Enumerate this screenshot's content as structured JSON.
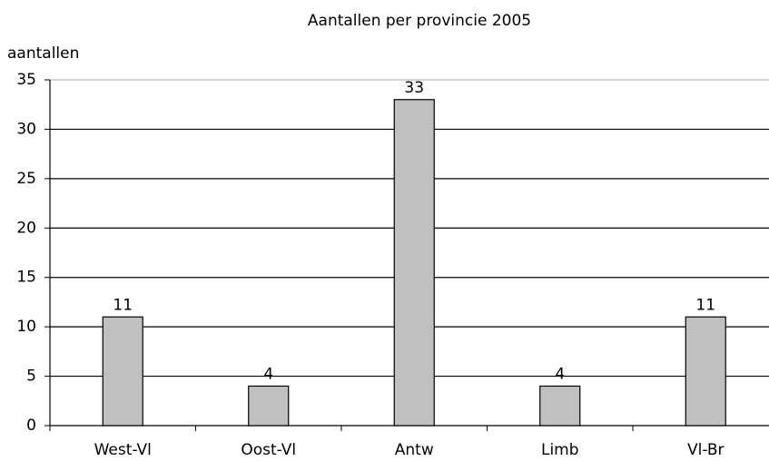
{
  "chart_data": {
    "type": "bar",
    "title": "Aantallen per provincie 2005",
    "y_label": "aantallen",
    "categories": [
      "West-Vl",
      "Oost-Vl",
      "Antw",
      "Limb",
      "Vl-Br"
    ],
    "values": [
      11,
      4,
      33,
      4,
      11
    ],
    "color": "#c0c0c0",
    "ylim": [
      0,
      35
    ],
    "yticks": [
      0,
      5,
      10,
      15,
      20,
      25,
      30,
      35
    ],
    "grid": true
  }
}
